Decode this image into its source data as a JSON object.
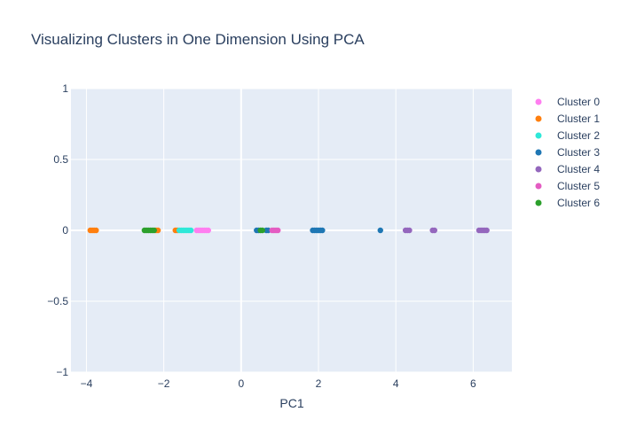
{
  "chart_data": {
    "type": "scatter",
    "title": "Visualizing Clusters in One Dimension Using PCA",
    "xlabel": "PC1",
    "ylabel": "",
    "xlim": [
      -4.4,
      7.0
    ],
    "ylim": [
      -1,
      1
    ],
    "xticks": [
      -4,
      -2,
      0,
      2,
      4,
      6
    ],
    "xtick_labels": [
      "−4",
      "−2",
      "0",
      "2",
      "4",
      "6"
    ],
    "yticks": [
      -1,
      -0.5,
      0,
      0.5,
      1
    ],
    "ytick_labels": [
      "−1",
      "−0.5",
      "0",
      "0.5",
      "1"
    ],
    "grid": true,
    "legend_position": "right",
    "plot_background": "#e5ecf6",
    "series": [
      {
        "name": "Cluster 0",
        "color": "#ff7ef0",
        "x": [
          -1.15,
          -1.1,
          -1.05,
          -1.0,
          -0.95,
          -0.9,
          -0.85
        ]
      },
      {
        "name": "Cluster 1",
        "color": "#ff7f0e",
        "x": [
          -3.9,
          -3.85,
          -3.8,
          -3.75,
          -2.2,
          -2.15,
          -1.7,
          -1.65
        ]
      },
      {
        "name": "Cluster 2",
        "color": "#2ee8d8",
        "x": [
          -1.6,
          -1.55,
          -1.5,
          -1.45,
          -1.4,
          -1.35,
          -1.3
        ]
      },
      {
        "name": "Cluster 3",
        "color": "#1f77b4",
        "x": [
          0.4,
          0.45,
          0.65,
          0.7,
          1.85,
          1.9,
          1.95,
          2.0,
          2.05,
          2.1,
          3.6
        ]
      },
      {
        "name": "Cluster 4",
        "color": "#9467bd",
        "x": [
          4.25,
          4.3,
          4.35,
          4.95,
          5.0,
          6.15,
          6.2,
          6.25,
          6.3,
          6.35
        ]
      },
      {
        "name": "Cluster 5",
        "color": "#e45cc2",
        "x": [
          0.8,
          0.85,
          0.9,
          0.95
        ]
      },
      {
        "name": "Cluster 6",
        "color": "#2ca02c",
        "x": [
          -2.5,
          -2.45,
          -2.4,
          -2.35,
          -2.3,
          -2.25,
          0.5,
          0.55
        ]
      }
    ]
  }
}
